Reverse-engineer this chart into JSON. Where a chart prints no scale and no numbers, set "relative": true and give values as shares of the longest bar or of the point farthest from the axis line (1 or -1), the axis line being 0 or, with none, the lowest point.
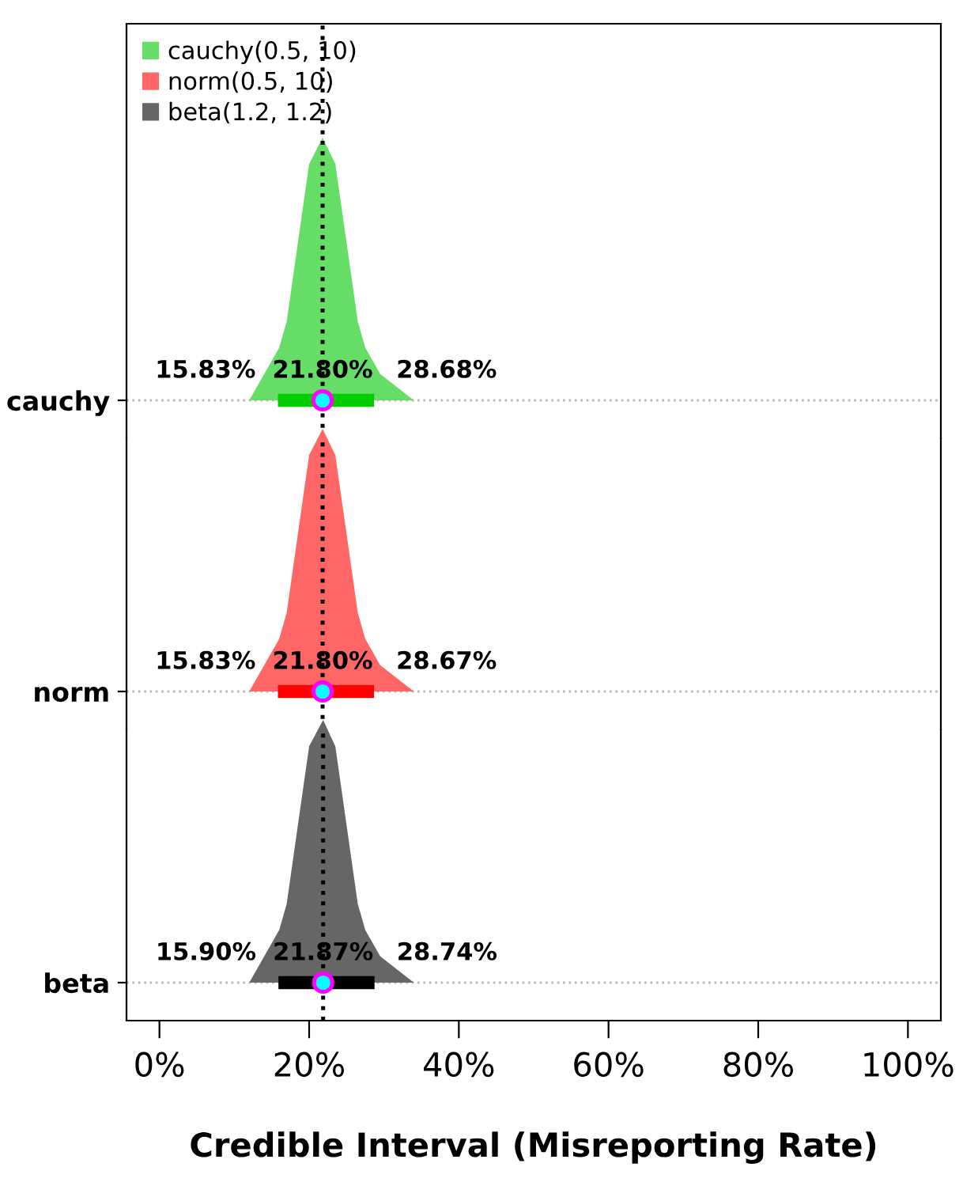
{
  "chart_data": [
    {
      "type": "area",
      "relative": true,
      "ylabel": "cauchy",
      "xlim": [
        -4.4,
        104.4
      ],
      "tick_labels": "y",
      "legend": "top left",
      "series": [
        {
          "name": "cauchy(0.5, 10)",
          "color": "#66dd66",
          "x": [
            12,
            14,
            16,
            17,
            18,
            19,
            20,
            21.8,
            23.5,
            24.5,
            25.5,
            26.5,
            27.5,
            29.5,
            34
          ],
          "values": [
            0.0,
            0.1,
            0.2,
            0.3,
            0.5,
            0.7,
            0.9,
            1.0,
            0.9,
            0.7,
            0.5,
            0.3,
            0.2,
            0.1,
            0.0
          ]
        },
        {
          "type": "line",
          "color": "#00cc00",
          "x": [
            15.83,
            28.68
          ],
          "values": [
            0,
            0
          ]
        },
        {
          "type": "scatter",
          "marker": "circle",
          "color": "#00ffff",
          "x": [
            21.8
          ],
          "values": [
            0
          ]
        }
      ],
      "ref_lines": [
        {
          "axis": "x",
          "value": 21.8,
          "color": "#000000",
          "line_style": "dotted"
        },
        {
          "axis": "y",
          "value": 0,
          "color": "#bbbbbb",
          "line_style": "dotted"
        }
      ],
      "annotations": [
        {
          "text": "15.83%",
          "x": 15.83,
          "y": 0
        },
        {
          "text": "21.80%",
          "x": 21.8,
          "y": 0
        },
        {
          "text": "28.68%",
          "x": 28.68,
          "y": 0
        }
      ]
    },
    {
      "type": "area",
      "relative": true,
      "ylabel": "norm",
      "xlim": [
        -4.4,
        104.4
      ],
      "tick_labels": "y",
      "series": [
        {
          "name": "norm(0.5, 10)",
          "color": "#ff6666",
          "x": [
            12,
            14,
            16,
            17,
            18,
            19,
            20,
            21.8,
            23.5,
            24.5,
            25.5,
            26.5,
            27.5,
            29.5,
            34
          ],
          "values": [
            0.0,
            0.1,
            0.2,
            0.3,
            0.5,
            0.7,
            0.9,
            1.0,
            0.9,
            0.7,
            0.5,
            0.3,
            0.2,
            0.1,
            0.0
          ]
        },
        {
          "type": "line",
          "color": "#ff0000",
          "x": [
            15.83,
            28.67
          ],
          "values": [
            0,
            0
          ]
        },
        {
          "type": "scatter",
          "marker": "circle",
          "color": "#00ffff",
          "x": [
            21.8
          ],
          "values": [
            0
          ]
        }
      ],
      "ref_lines": [
        {
          "axis": "x",
          "value": 21.8,
          "color": "#000000",
          "line_style": "dotted"
        },
        {
          "axis": "y",
          "value": 0,
          "color": "#bbbbbb",
          "line_style": "dotted"
        }
      ],
      "annotations": [
        {
          "text": "15.83%",
          "x": 15.83,
          "y": 0
        },
        {
          "text": "21.80%",
          "x": 21.8,
          "y": 0
        },
        {
          "text": "28.67%",
          "x": 28.67,
          "y": 0
        }
      ]
    },
    {
      "type": "area",
      "relative": true,
      "ylabel": "beta",
      "xlabel": "Credible Interval (Misreporting Rate)",
      "xlim": [
        -4.4,
        104.4
      ],
      "xticks": [
        {
          "value": 0,
          "label": "0%"
        },
        {
          "value": 20,
          "label": "20%"
        },
        {
          "value": 40,
          "label": "40%"
        },
        {
          "value": 60,
          "label": "60%"
        },
        {
          "value": 80,
          "label": "80%"
        },
        {
          "value": 100,
          "label": "100%"
        }
      ],
      "series": [
        {
          "name": "beta(1.2, 1.2)",
          "color": "#666666",
          "x": [
            12,
            14,
            16,
            17,
            18,
            19,
            20,
            21.87,
            23.5,
            24.5,
            25.5,
            26.5,
            27.5,
            29.5,
            34
          ],
          "values": [
            0.0,
            0.1,
            0.2,
            0.3,
            0.5,
            0.7,
            0.9,
            1.0,
            0.9,
            0.7,
            0.5,
            0.3,
            0.2,
            0.1,
            0.0
          ]
        },
        {
          "type": "line",
          "color": "#000000",
          "x": [
            15.9,
            28.74
          ],
          "values": [
            0,
            0
          ]
        },
        {
          "type": "scatter",
          "marker": "circle",
          "color": "#00ffff",
          "x": [
            21.87
          ],
          "values": [
            0
          ]
        }
      ],
      "ref_lines": [
        {
          "axis": "x",
          "value": 21.87,
          "color": "#000000",
          "line_style": "dotted"
        },
        {
          "axis": "y",
          "value": 0,
          "color": "#bbbbbb",
          "line_style": "dotted"
        }
      ],
      "annotations": [
        {
          "text": "15.90%",
          "x": 15.9,
          "y": 0
        },
        {
          "text": "21.87%",
          "x": 21.87,
          "y": 0
        },
        {
          "text": "28.74%",
          "x": 28.74,
          "y": 0
        }
      ]
    }
  ]
}
